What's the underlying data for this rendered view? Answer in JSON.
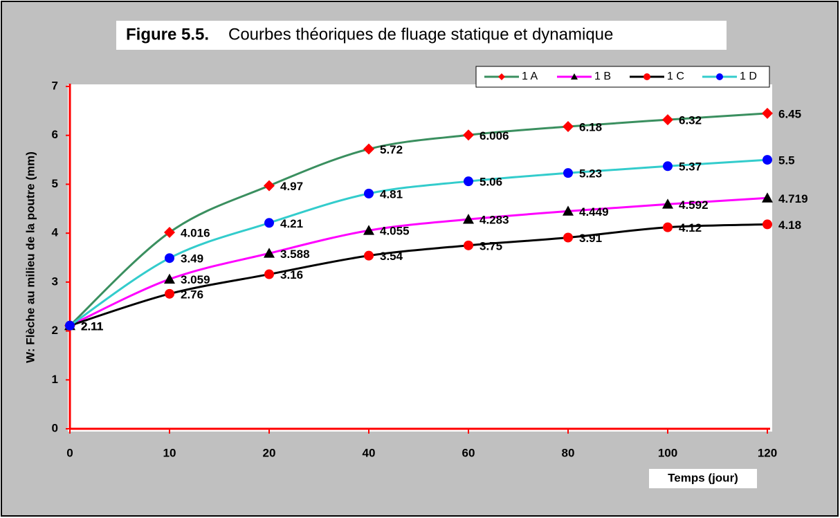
{
  "chart_data": {
    "type": "line",
    "figure_label": "Figure 5.5.",
    "title": "Courbes théoriques de fluage statique et dynamique",
    "x_label": "Temps  (jour)",
    "y_label": "W: Flèche au milieu de la poutre (mm)",
    "categories": [
      "0",
      "10",
      "20",
      "40",
      "60",
      "80",
      "100",
      "120"
    ],
    "ylim": [
      0,
      7
    ],
    "yticks": [
      0,
      1,
      2,
      3,
      4,
      5,
      6,
      7
    ],
    "series": [
      {
        "name": "1 A",
        "color": "#3a8f5f",
        "marker": "diamond",
        "marker_color": "#ff0000",
        "values": [
          2.11,
          4.016,
          4.97,
          5.72,
          6.006,
          6.18,
          6.32,
          6.45
        ]
      },
      {
        "name": "1 B",
        "color": "#ff00ff",
        "marker": "triangle",
        "marker_color": "#000000",
        "values": [
          2.11,
          3.059,
          3.588,
          4.055,
          4.283,
          4.449,
          4.592,
          4.719
        ]
      },
      {
        "name": "1 C",
        "color": "#000000",
        "marker": "circle",
        "marker_color": "#ff0000",
        "values": [
          2.11,
          2.76,
          3.16,
          3.54,
          3.75,
          3.91,
          4.12,
          4.18
        ]
      },
      {
        "name": "1 D",
        "color": "#33cccc",
        "marker": "circle",
        "marker_color": "#0000ff",
        "values": [
          2.11,
          3.49,
          4.21,
          4.81,
          5.06,
          5.23,
          5.37,
          5.5
        ]
      }
    ],
    "legend": "top-right"
  }
}
